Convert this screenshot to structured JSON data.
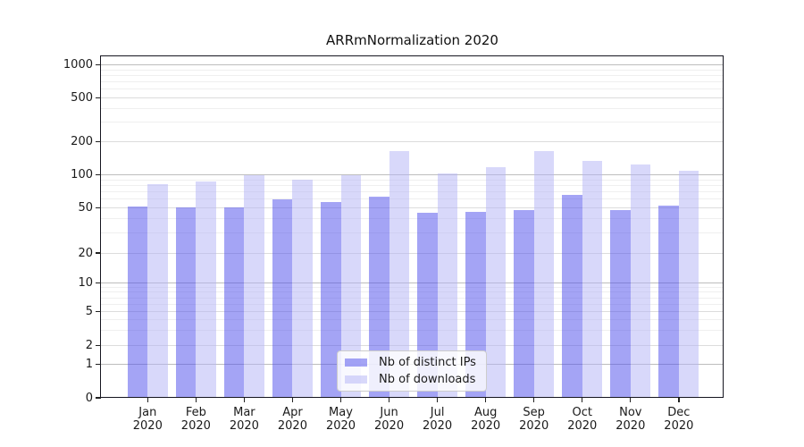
{
  "chart_data": {
    "type": "bar",
    "title": "ARRmNormalization 2020",
    "categories": [
      "Jan 2020",
      "Feb 2020",
      "Mar 2020",
      "Apr 2020",
      "May 2020",
      "Jun 2020",
      "Jul 2020",
      "Aug 2020",
      "Sep 2020",
      "Oct 2020",
      "Nov 2020",
      "Dec 2020"
    ],
    "series": [
      {
        "name": "Nb of distinct IPs",
        "color": "rgba(80,80,235,0.52)",
        "values": [
          51,
          50,
          50,
          60,
          56,
          63,
          45,
          46,
          48,
          66,
          48,
          52
        ]
      },
      {
        "name": "Nb of downloads",
        "color": "rgba(180,180,245,0.52)",
        "values": [
          82,
          87,
          100,
          90,
          99,
          165,
          103,
          118,
          165,
          135,
          125,
          109
        ]
      }
    ],
    "y_axis": {
      "scale": "log",
      "ticks": [
        0,
        1,
        2,
        5,
        10,
        20,
        50,
        100,
        200,
        500,
        1000
      ],
      "range": [
        0,
        1000
      ]
    },
    "x_axis": {
      "label_year": "2020"
    },
    "legend": {
      "position": "bottom-center",
      "entries": [
        "Nb of distinct IPs",
        "Nb of downloads"
      ]
    },
    "grid": true,
    "colors": {
      "bar_dark": "#a3a3f5",
      "bar_light": "#d9d9fa",
      "grid_decade": "#bdbdbd",
      "grid_labeled": "#dcdcdc",
      "grid_minor": "#efefef",
      "axis": "#15151f"
    }
  }
}
